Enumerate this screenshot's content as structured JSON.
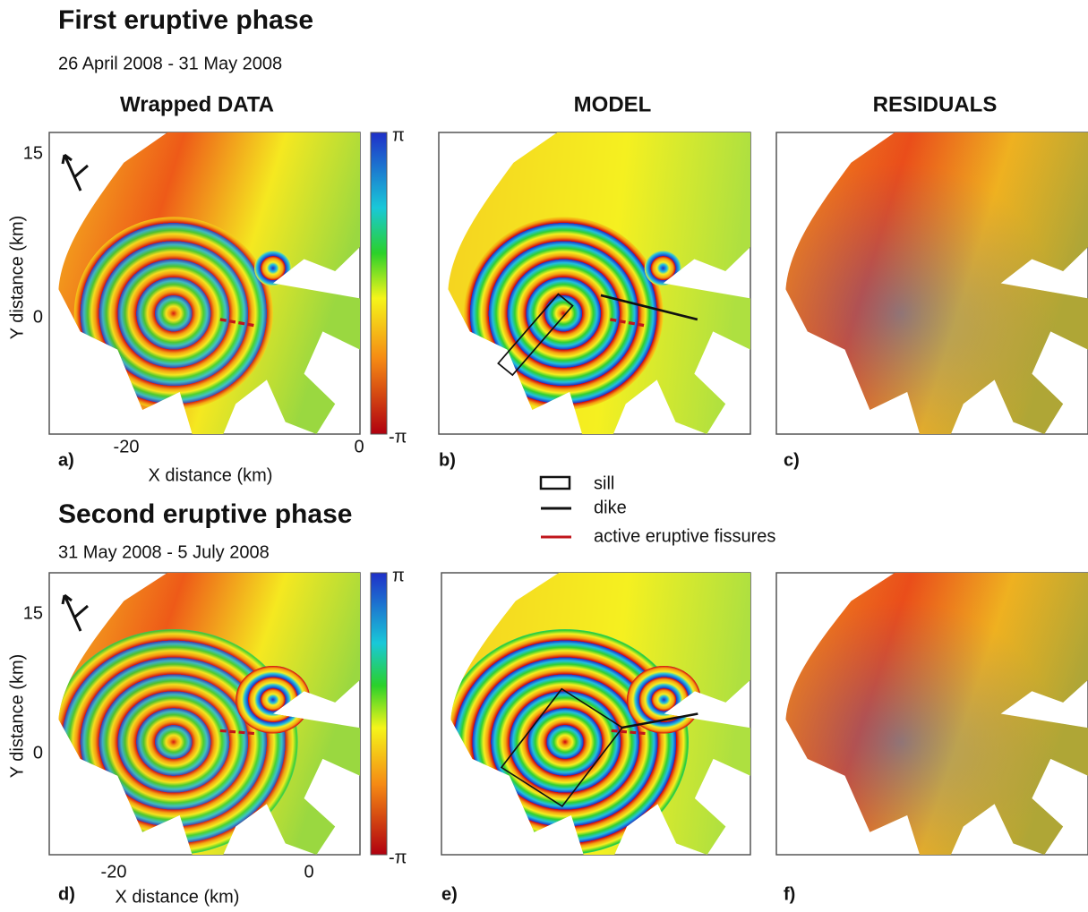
{
  "phases": [
    {
      "title": "First eruptive phase",
      "dates": "26 April 2008 - 31 May 2008",
      "panels": [
        {
          "label": "a)"
        },
        {
          "label": "b)"
        },
        {
          "label": "c)"
        }
      ],
      "yticks": [
        "15",
        "0"
      ],
      "xticks": [
        "-20",
        "0"
      ],
      "colorbar": {
        "max": "π",
        "min": "-π"
      }
    },
    {
      "title": "Second eruptive phase",
      "dates": "31 May 2008 - 5 July 2008",
      "panels": [
        {
          "label": "d)"
        },
        {
          "label": "e)"
        },
        {
          "label": "f)"
        }
      ],
      "yticks": [
        "15",
        "0"
      ],
      "xticks": [
        "-20",
        "0"
      ],
      "colorbar": {
        "max": "π",
        "min": "-π"
      }
    }
  ],
  "columns": [
    "Wrapped DATA",
    "MODEL",
    "RESIDUALS"
  ],
  "axes": {
    "x_label": "X distance (km)",
    "y_label": "Y distance (km)"
  },
  "legend": [
    {
      "label": "sill"
    },
    {
      "label": "dike"
    },
    {
      "label": "active eruptive fissures"
    }
  ]
}
